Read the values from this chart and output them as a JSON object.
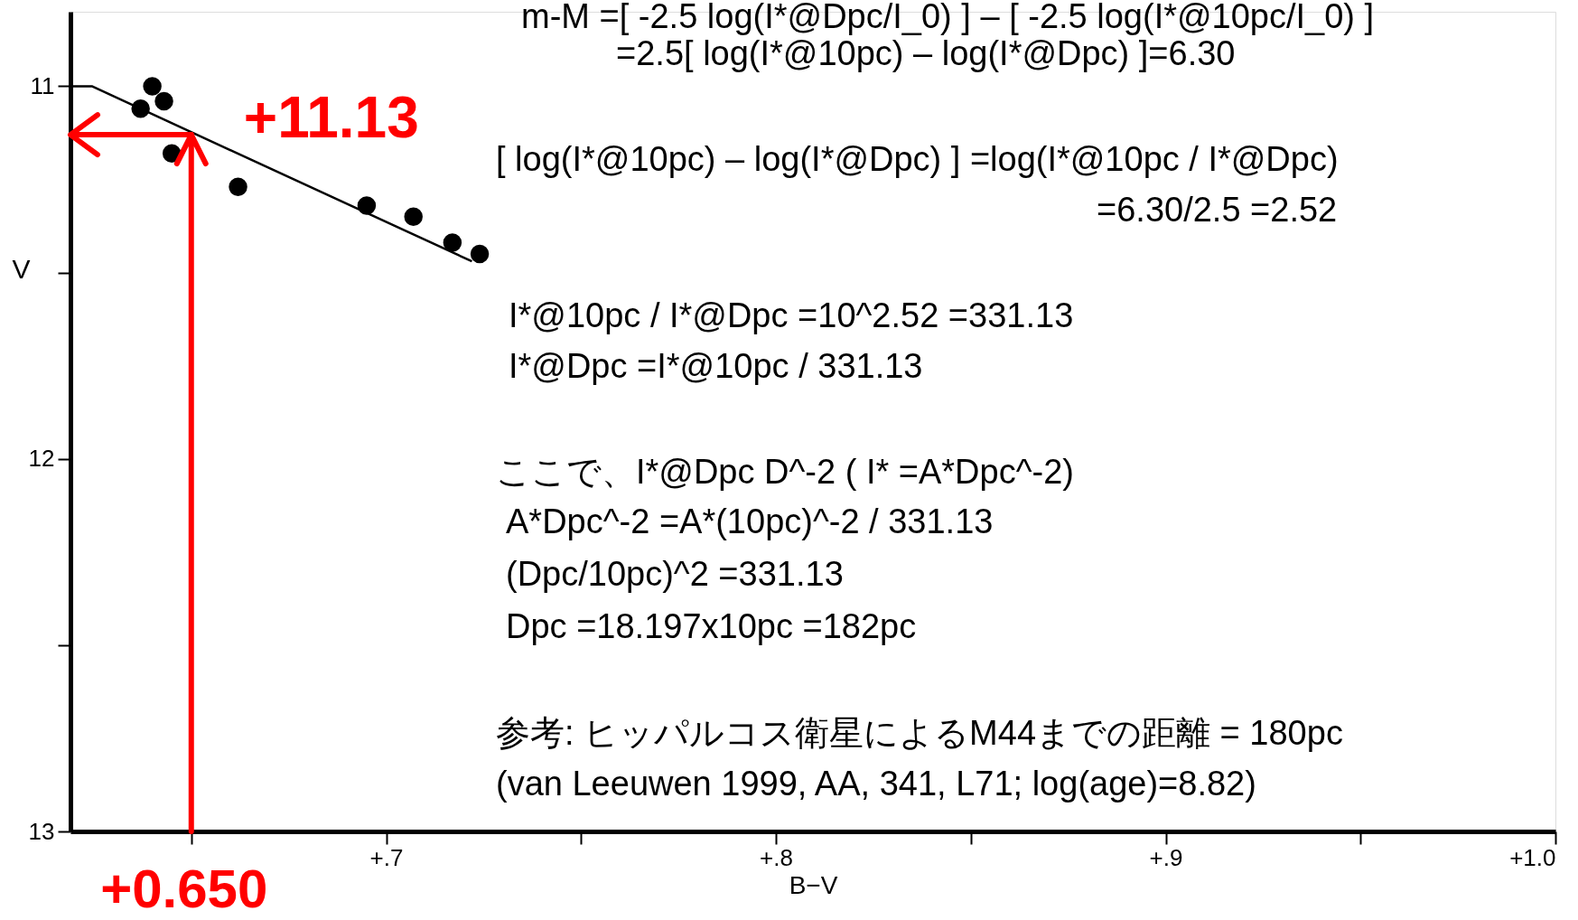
{
  "chart_data": {
    "type": "scatter",
    "xlabel": "B−V",
    "ylabel": "V",
    "xlim": [
      0.619,
      1.0
    ],
    "ylim": [
      13.0,
      10.8
    ],
    "xticks": [
      {
        "value": 0.65,
        "label": null
      },
      {
        "value": 0.7,
        "label": "+.7"
      },
      {
        "value": 0.75,
        "label": null
      },
      {
        "value": 0.8,
        "label": "+.8"
      },
      {
        "value": 0.85,
        "label": null
      },
      {
        "value": 0.9,
        "label": "+.9"
      },
      {
        "value": 0.95,
        "label": null
      },
      {
        "value": 1.0,
        "label": "+1.0"
      }
    ],
    "yticks": [
      11,
      {
        "value": 11.5,
        "label": null
      },
      12,
      {
        "value": 12.5,
        "label": null
      },
      13
    ],
    "grid": false,
    "marker": "circle",
    "series": [
      {
        "color": "#000000",
        "x": [
          0.64,
          0.643,
          0.637,
          0.645,
          0.662,
          0.695,
          0.707,
          0.717,
          0.724
        ],
        "values": [
          11.0,
          11.04,
          11.06,
          11.18,
          11.27,
          11.32,
          11.35,
          11.42,
          11.45
        ]
      },
      {
        "type": "line",
        "color": "#000000",
        "line_style": "solid",
        "marker": "none",
        "x": [
          0.619,
          0.6245,
          0.722
        ],
        "values": [
          11.0,
          11.0,
          11.47
        ]
      }
    ],
    "annotations": [
      {
        "text": "+11.13",
        "x": 0.65,
        "y": 11.13
      },
      "+0.650",
      "m-M =[ -2.5 log(I*@Dpc/I_0) ] – [ -2.5 log(I*@10pc/I_0) ]",
      "=2.5[ log(I*@10pc) – log(I*@Dpc) ]=6.30",
      "[ log(I*@10pc) – log(I*@Dpc) ] =log(I*@10pc / I*@Dpc)",
      "=6.30/2.5 =2.52",
      "I*@10pc / I*@Dpc =10^2.52  =331.13",
      "I*@Dpc =I*@10pc / 331.13",
      "ここで、I*@Dpc      D^-2  ( I* =A*Dpc^-2)",
      "A*Dpc^-2 =A*(10pc)^-2 / 331.13",
      "(Dpc/10pc)^2 =331.13",
      "Dpc =18.197x10pc =182pc",
      "参考:  ヒッパルコス衛星によるM44までの距離 = 180pc",
      "(van Leeuwen 1999, AA, 341, L71;  log(age)=8.82)"
    ]
  }
}
